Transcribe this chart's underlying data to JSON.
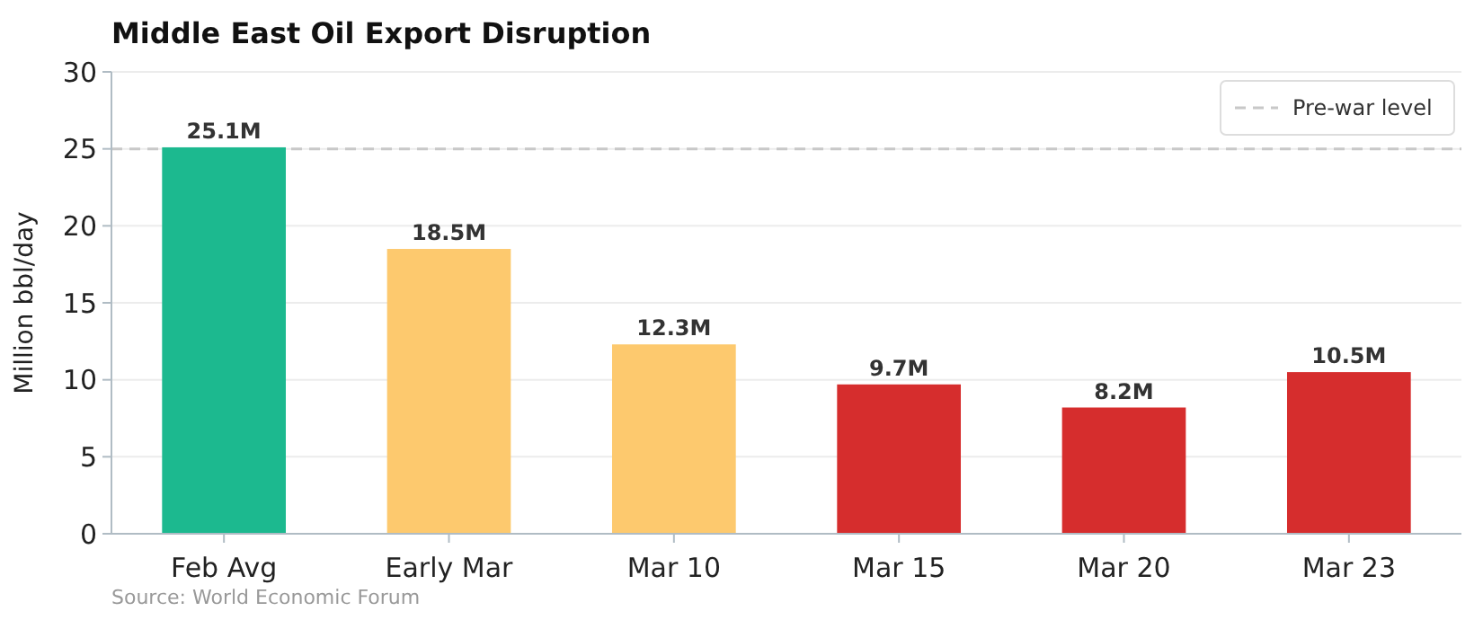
{
  "chart_data": {
    "type": "bar",
    "title": "Middle East Oil Export Disruption",
    "ylabel": "Million bbl/day",
    "categories": [
      "Feb Avg",
      "Early Mar",
      "Mar 10",
      "Mar 15",
      "Mar 20",
      "Mar 23"
    ],
    "values": [
      25.1,
      18.5,
      12.3,
      9.7,
      8.2,
      10.5
    ],
    "colors": [
      "#1cb98f",
      "#fdc96e",
      "#fdc96e",
      "#d62d2d",
      "#d62d2d",
      "#d62d2d"
    ],
    "value_labels": [
      "25.1M",
      "18.5M",
      "12.3M",
      "9.7M",
      "8.2M",
      "10.5M"
    ],
    "ylim": [
      0,
      30
    ],
    "yticks": [
      0,
      5,
      10,
      15,
      20,
      25,
      30
    ],
    "grid": "y",
    "ref_lines": [
      {
        "axis": "y",
        "value": 25,
        "label": "Pre-war level",
        "color": "#c8c8c8",
        "line_style": "dashed"
      }
    ],
    "legend": "top right",
    "annotations": [
      "Source: World Economic Forum"
    ]
  }
}
